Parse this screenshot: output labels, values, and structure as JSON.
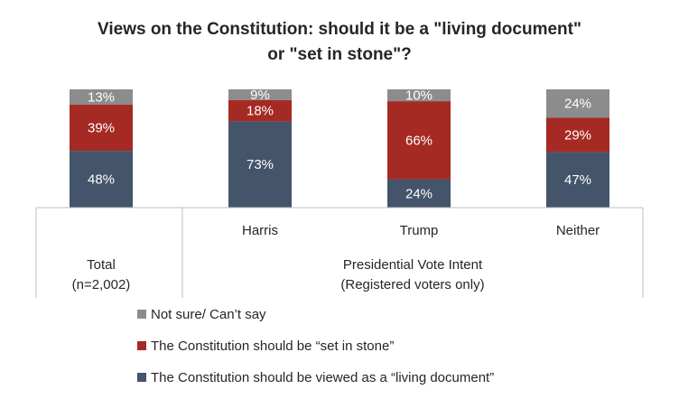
{
  "chart_data": {
    "type": "bar",
    "stacked": true,
    "title_line1": "Views on the Constitution: should it be a \"living document\"",
    "title_line2": "or \"set in stone\"?",
    "categories": [
      "Harris",
      "Trump",
      "Neither"
    ],
    "bars": [
      {
        "key": "total",
        "label": "",
        "values": [
          48,
          39,
          13
        ]
      },
      {
        "key": "harris",
        "label": "Harris",
        "values": [
          73,
          18,
          9
        ]
      },
      {
        "key": "trump",
        "label": "Trump",
        "values": [
          24,
          66,
          10
        ]
      },
      {
        "key": "neither",
        "label": "Neither",
        "values": [
          47,
          29,
          24
        ]
      }
    ],
    "series": [
      {
        "name": "The Constitution should be viewed as a “living document”",
        "color": "#44546a"
      },
      {
        "name": "The Constitution should be “set in stone”",
        "color": "#a52a23"
      },
      {
        "name": "Not sure/ Can’t say",
        "color": "#8c8c8c"
      }
    ],
    "value_suffix": "%",
    "group_labels": {
      "total_line1": "Total",
      "total_line2": "(n=2,002)",
      "pvi_line1": "Presidential Vote Intent",
      "pvi_line2": "(Registered voters only)"
    },
    "ylim": [
      0,
      100
    ],
    "grid": false,
    "legend_position": "bottom"
  }
}
